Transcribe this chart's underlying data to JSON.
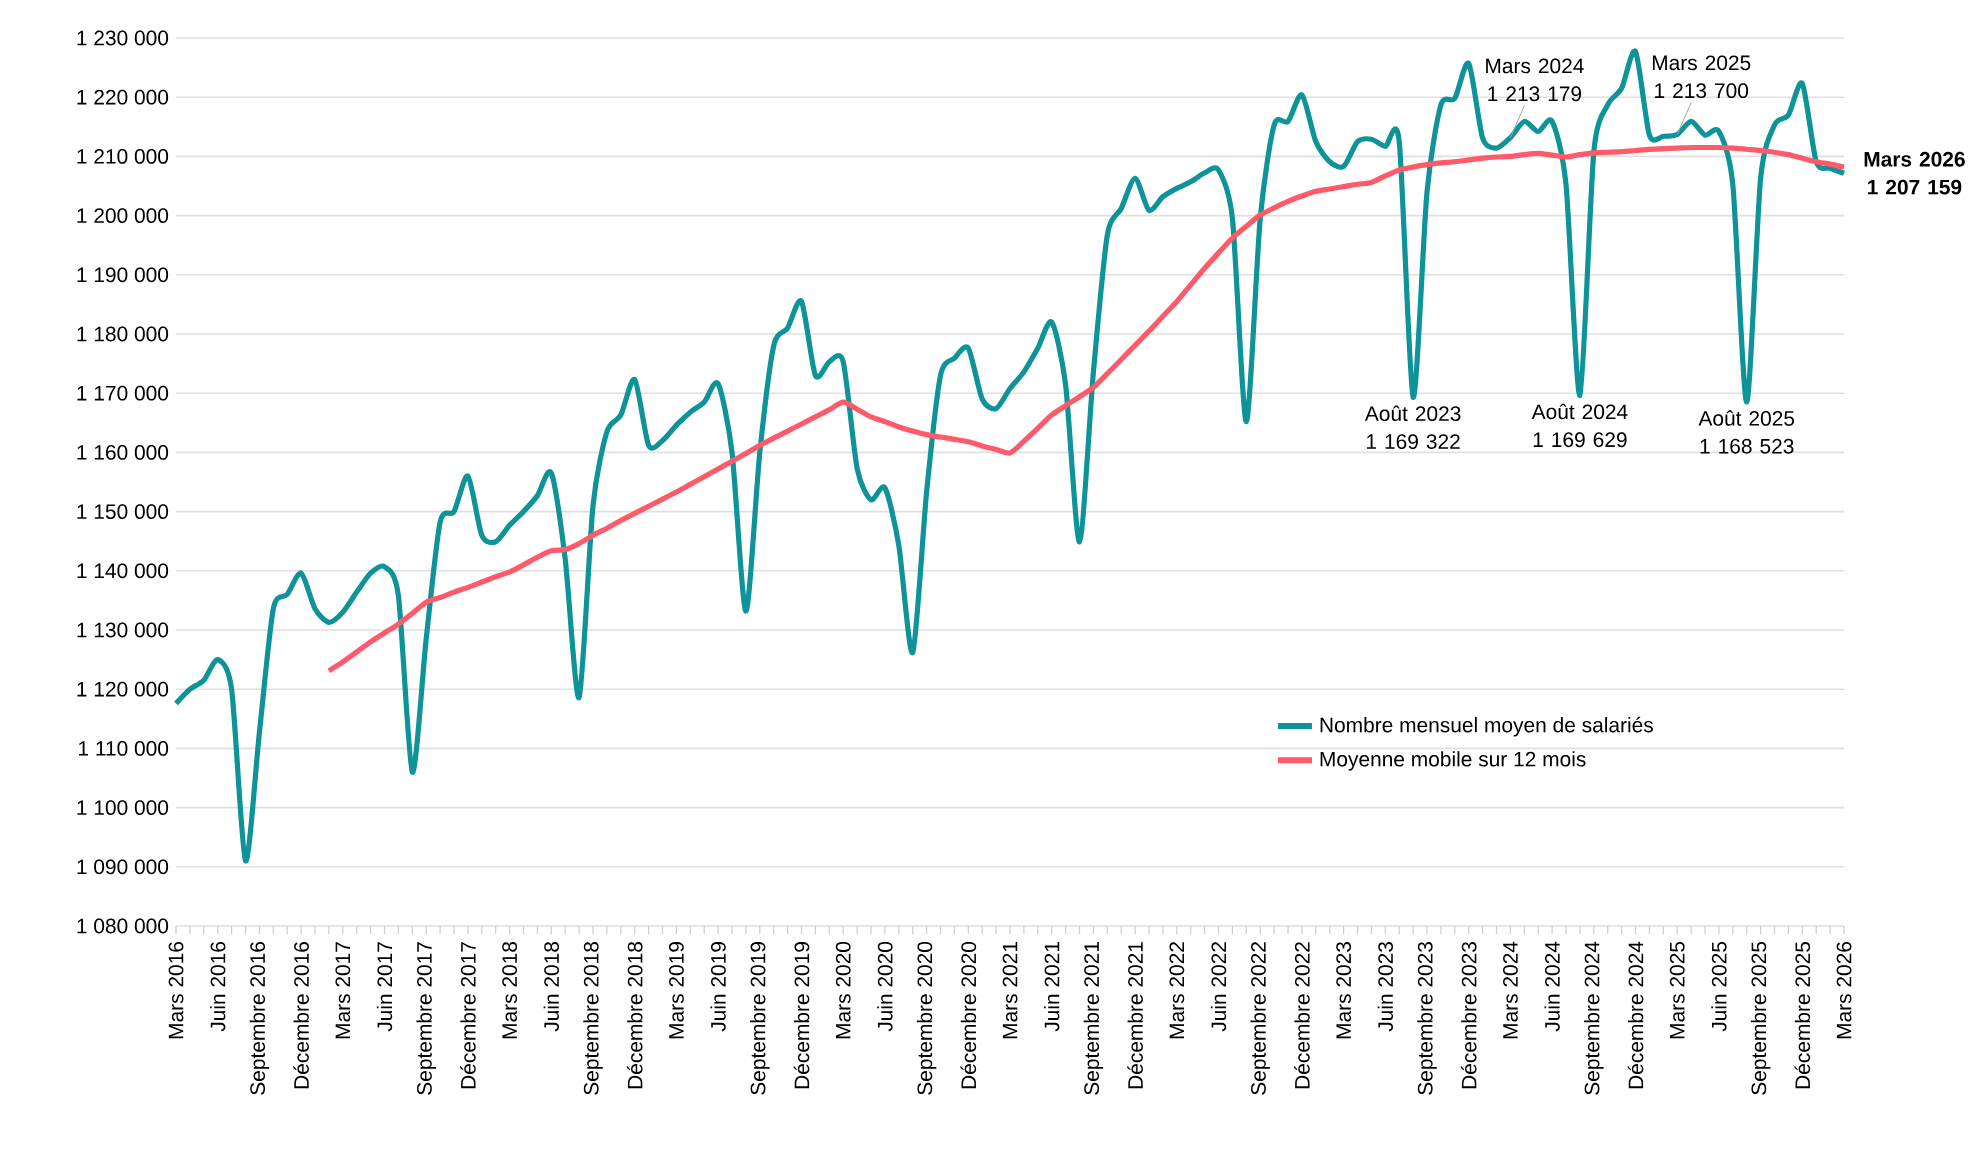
{
  "chart_data": {
    "type": "line",
    "categories": [
      "Mars 2016",
      null,
      null,
      "Juin 2016",
      null,
      null,
      "Septembre 2016",
      null,
      null,
      "Décembre 2016",
      null,
      null,
      "Mars 2017",
      null,
      null,
      "Juin 2017",
      null,
      null,
      "Septembre 2017",
      null,
      null,
      "Décembre 2017",
      null,
      null,
      "Mars 2018",
      null,
      null,
      "Juin 2018",
      null,
      null,
      "Septembre 2018",
      null,
      null,
      "Décembre 2018",
      null,
      null,
      "Mars 2019",
      null,
      null,
      "Juin 2019",
      null,
      null,
      "Septembre 2019",
      null,
      null,
      "Décembre 2019",
      null,
      null,
      "Mars 2020",
      null,
      null,
      "Juin 2020",
      null,
      null,
      "Septembre 2020",
      null,
      null,
      "Décembre 2020",
      null,
      null,
      "Mars 2021",
      null,
      null,
      "Juin 2021",
      null,
      null,
      "Septembre 2021",
      null,
      null,
      "Décembre 2021",
      null,
      null,
      "Mars 2022",
      null,
      null,
      "Juin 2022",
      null,
      null,
      "Septembre 2022",
      null,
      null,
      "Décembre 2022",
      null,
      null,
      "Mars 2023",
      null,
      null,
      "Juin 2023",
      null,
      null,
      "Septembre 2023",
      null,
      null,
      "Décembre 2023",
      null,
      null,
      "Mars 2024",
      null,
      null,
      "Juin 2024",
      null,
      null,
      "Septembre 2024",
      null,
      null,
      "Décembre 2024",
      null,
      null,
      "Mars 2025",
      null,
      null,
      "Juin 2025",
      null,
      null,
      "Septembre 2025",
      null,
      null,
      "Décembre 2025",
      null,
      null,
      "Mars 2026"
    ],
    "series": [
      {
        "name": "Nombre mensuel moyen de salariés",
        "color": "#0e9399",
        "values": [
          1117600,
          1120000,
          1121500,
          1125000,
          1120000,
          1091000,
          1112700,
          1133600,
          1136000,
          1139600,
          1133600,
          1131300,
          1133000,
          1136400,
          1139600,
          1140700,
          1135800,
          1106000,
          1128500,
          1148200,
          1150000,
          1156000,
          1146000,
          1144900,
          1147700,
          1150000,
          1152700,
          1156500,
          1142000,
          1118600,
          1151000,
          1163500,
          1166300,
          1172300,
          1161200,
          1162000,
          1164600,
          1166800,
          1168500,
          1171600,
          1160000,
          1133200,
          1160000,
          1178000,
          1181000,
          1185500,
          1173000,
          1175300,
          1175300,
          1157300,
          1152000,
          1154000,
          1144300,
          1126200,
          1153300,
          1173000,
          1175900,
          1177600,
          1169000,
          1167400,
          1170800,
          1173600,
          1177600,
          1182000,
          1171400,
          1144900,
          1173600,
          1196700,
          1201200,
          1206300,
          1200900,
          1203200,
          1204600,
          1205700,
          1207200,
          1207700,
          1199500,
          1165200,
          1199500,
          1215300,
          1215900,
          1220400,
          1212500,
          1209100,
          1208300,
          1212500,
          1212900,
          1211700,
          1212500,
          1169322,
          1204000,
          1218700,
          1219800,
          1225700,
          1213100,
          1211400,
          1213179,
          1215900,
          1214200,
          1215900,
          1205200,
          1169629,
          1210800,
          1218700,
          1221500,
          1227700,
          1213600,
          1213400,
          1213700,
          1215900,
          1213600,
          1214200,
          1205200,
          1168523,
          1206300,
          1215300,
          1217000,
          1222300,
          1209100,
          1208000,
          1207159
        ]
      },
      {
        "name": "Moyenne mobile sur 12 mois",
        "color": "#ff5a6a",
        "values": [
          null,
          null,
          null,
          null,
          null,
          null,
          null,
          null,
          null,
          null,
          null,
          1123100,
          1124600,
          1126300,
          1128000,
          1129500,
          1131000,
          1132800,
          1134700,
          1135500,
          1136400,
          1137200,
          1138100,
          1139000,
          1139800,
          1141000,
          1142300,
          1143400,
          1143600,
          1144600,
          1146000,
          1147200,
          1148500,
          1149700,
          1150900,
          1152100,
          1153300,
          1154600,
          1155900,
          1157200,
          1158500,
          1159800,
          1161200,
          1162400,
          1163600,
          1164800,
          1166000,
          1167200,
          1168500,
          1167300,
          1166000,
          1165200,
          1164300,
          1163600,
          1163000,
          1162600,
          1162200,
          1161800,
          1161100,
          1160500,
          1159900,
          1161900,
          1164100,
          1166300,
          1167900,
          1169400,
          1171000,
          1173300,
          1175700,
          1178100,
          1180500,
          1183000,
          1185500,
          1188300,
          1191100,
          1193700,
          1196200,
          1198200,
          1200100,
          1201300,
          1202400,
          1203300,
          1204100,
          1204500,
          1204900,
          1205300,
          1205600,
          1206700,
          1207700,
          1208200,
          1208600,
          1208900,
          1209100,
          1209400,
          1209700,
          1209900,
          1210000,
          1210300,
          1210500,
          1210200,
          1209900,
          1210300,
          1210600,
          1210700,
          1210800,
          1211000,
          1211200,
          1211300,
          1211400,
          1211500,
          1211500,
          1211500,
          1211400,
          1211200,
          1211000,
          1210700,
          1210300,
          1209700,
          1209100,
          1208700,
          1208200
        ]
      }
    ],
    "ylim": [
      1080000,
      1230000
    ],
    "yticks": [
      {
        "value": 1080000,
        "label": "1 080 000"
      },
      {
        "value": 1090000,
        "label": "1 090 000"
      },
      {
        "value": 1100000,
        "label": "1 100 000"
      },
      {
        "value": 1110000,
        "label": "1 110 000"
      },
      {
        "value": 1120000,
        "label": "1 120 000"
      },
      {
        "value": 1130000,
        "label": "1 130 000"
      },
      {
        "value": 1140000,
        "label": "1 140 000"
      },
      {
        "value": 1150000,
        "label": "1 150 000"
      },
      {
        "value": 1160000,
        "label": "1 160 000"
      },
      {
        "value": 1170000,
        "label": "1 170 000"
      },
      {
        "value": 1180000,
        "label": "1 180 000"
      },
      {
        "value": 1190000,
        "label": "1 190 000"
      },
      {
        "value": 1200000,
        "label": "1 200 000"
      },
      {
        "value": 1210000,
        "label": "1 210 000"
      },
      {
        "value": 1220000,
        "label": "1 220 000"
      },
      {
        "value": 1230000,
        "label": "1 230 000"
      }
    ],
    "annotations": [
      {
        "text": "Août 2023 1 169 322",
        "y": 1169322
      },
      {
        "text": "Mars 2024 1 213 179",
        "y": 1213179
      },
      {
        "text": "Août 2024 1 169 629",
        "y": 1169629
      },
      {
        "text": "Mars 2025 1 213 700",
        "y": 1213700
      },
      {
        "text": "Août 2025 1 168 523",
        "y": 1168523
      },
      "Mars 2026 1 207 159"
    ],
    "grid": "y",
    "legend": "bottom right",
    "marker": "none",
    "line_style": "solid"
  }
}
